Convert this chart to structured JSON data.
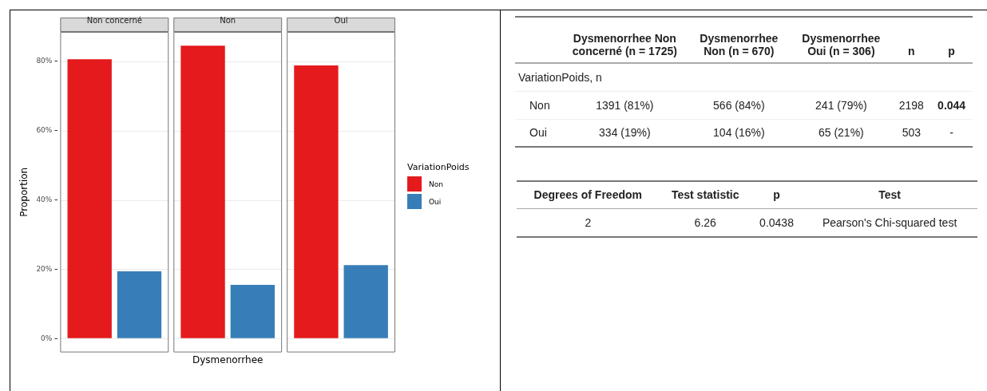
{
  "chart_data": [
    {
      "type": "bar",
      "xlabel": "Dysmenorrhee",
      "ylabel": "Proportion",
      "legend_title": "VariationPoids",
      "legend": "right",
      "categories": [
        "Non concerné",
        "Non",
        "Oui"
      ],
      "series": [
        {
          "name": "Non",
          "color": "#e41a1c",
          "values": [
            80.6,
            84.5,
            78.8
          ]
        },
        {
          "name": "Oui",
          "color": "#377eb8",
          "values": [
            19.4,
            15.5,
            21.2
          ]
        }
      ],
      "ylim": [
        -4,
        88.5
      ],
      "yticks": [
        {
          "value": 0,
          "label": "0%"
        },
        {
          "value": 20,
          "label": "20%"
        },
        {
          "value": 40,
          "label": "40%"
        },
        {
          "value": 60,
          "label": "60%"
        },
        {
          "value": 80,
          "label": "80%"
        }
      ],
      "grid": "y"
    },
    {
      "type": "other",
      "annotations": [
        "Dysmenorrhee Non concerné (n = 1725)",
        "Dysmenorrhee Non (n = 670)",
        "Dysmenorrhee Oui (n = 306)",
        "n",
        "p",
        "VariationPoids, n",
        "Non",
        "1391 (81%)",
        "566 (84%)",
        "241 (79%)",
        "2198",
        "0.044",
        "Oui",
        "334 (19%)",
        "104 (16%)",
        "65 (21%)",
        "503",
        "-"
      ]
    },
    {
      "type": "other",
      "annotations": [
        "Degrees of Freedom",
        "Test statistic",
        "p",
        "Test",
        "2",
        "6.26",
        "0.0438",
        "Pearson's Chi-squared test"
      ]
    }
  ]
}
